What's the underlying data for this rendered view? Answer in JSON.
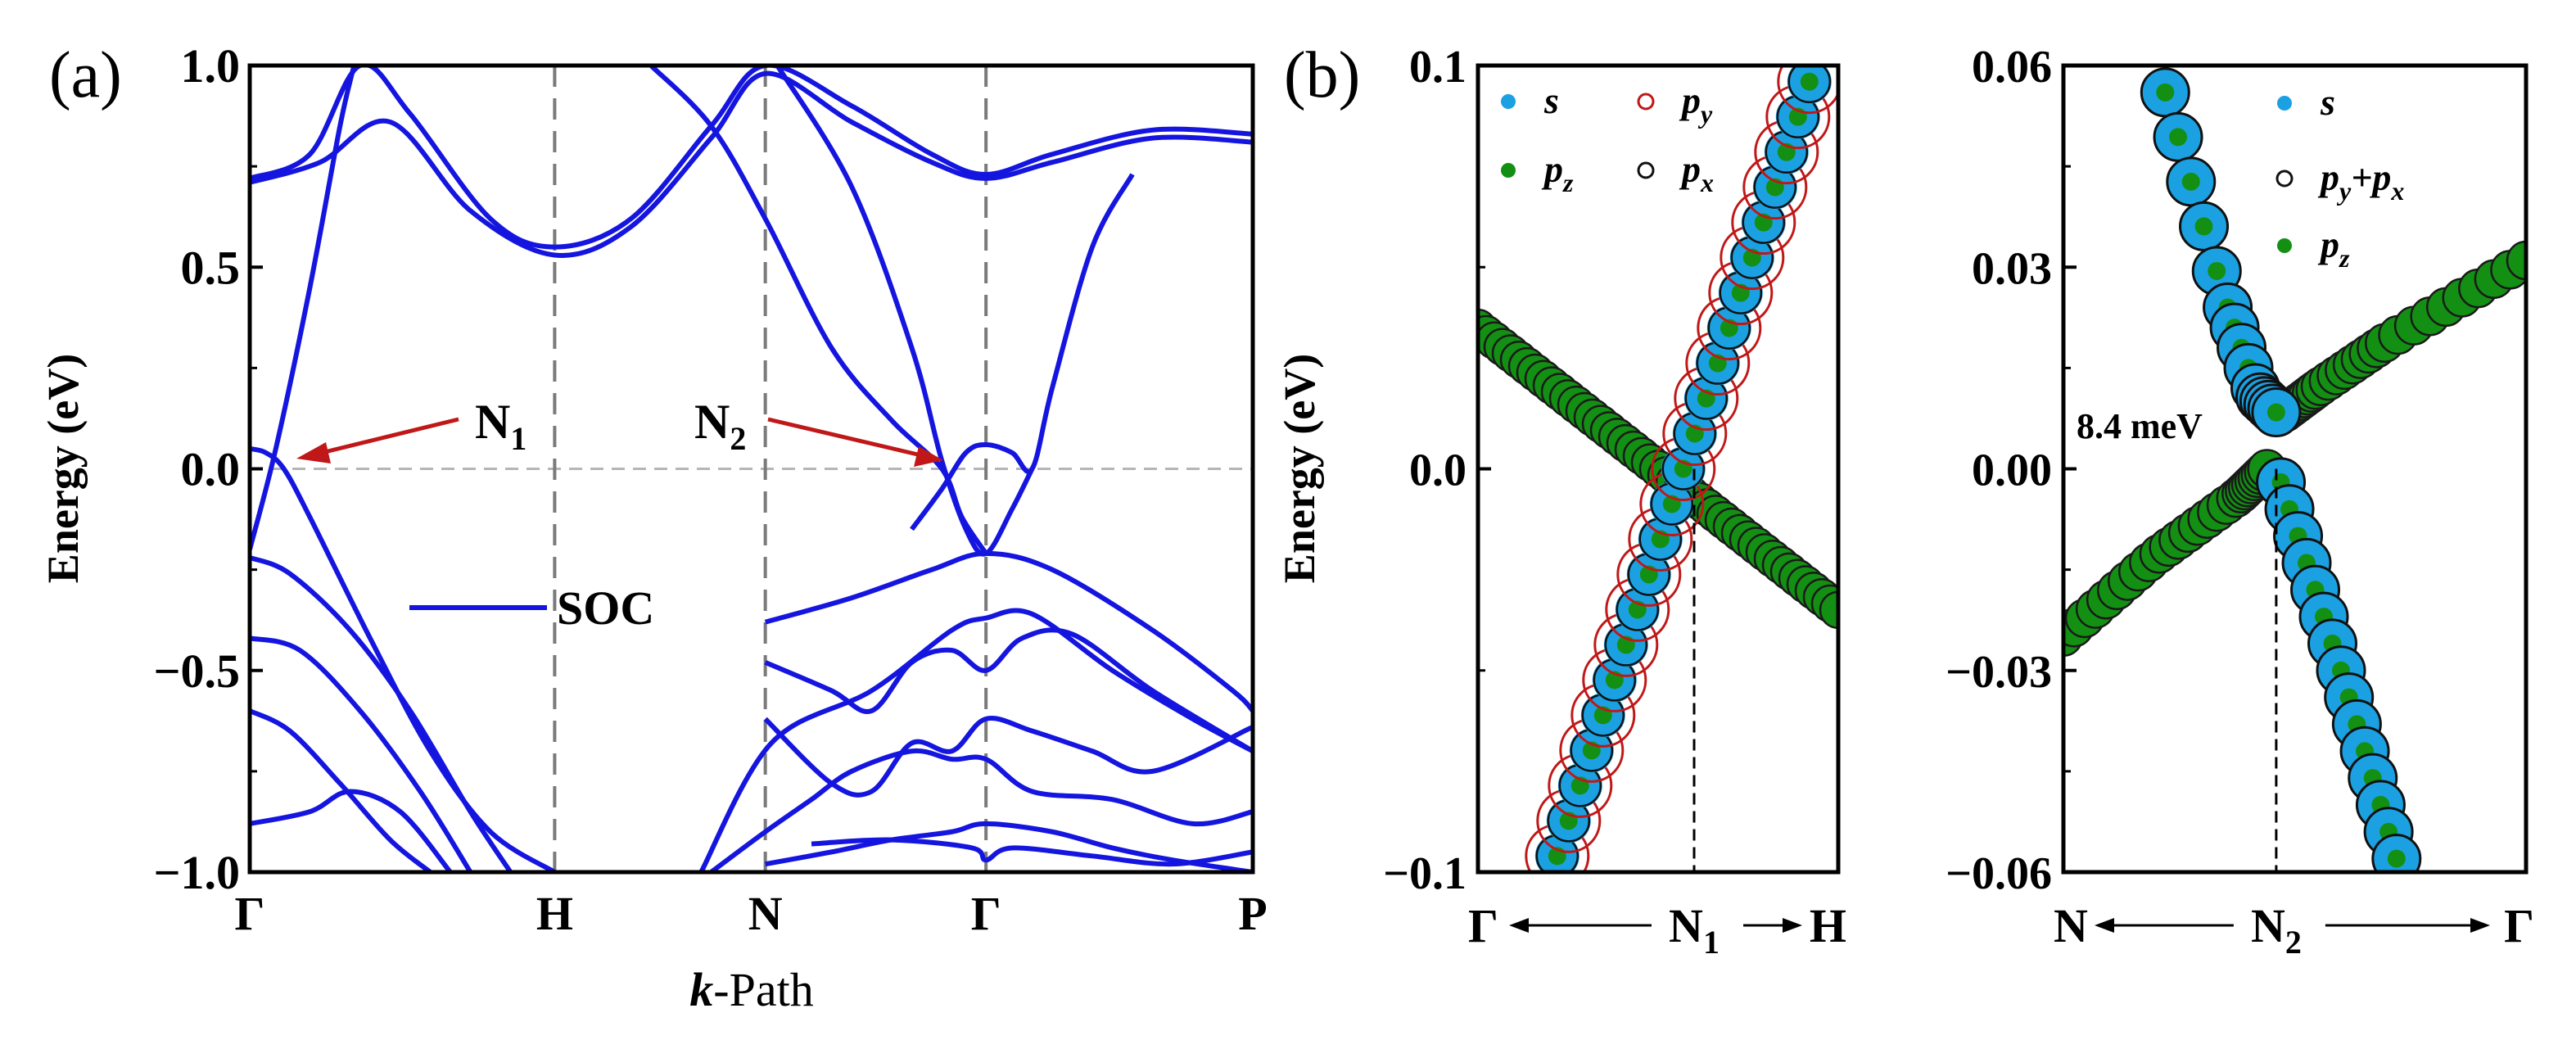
{
  "chart_data": [
    {
      "type": "line",
      "panel_label": "(a)",
      "xlabel": "k-Path",
      "xlabel_italic": "k",
      "xlabel_rest": "-Path",
      "ylabel": "Energy (eV)",
      "ylim": [
        -1.0,
        1.0
      ],
      "yticks": [
        -1.0,
        -0.5,
        0.0,
        0.5,
        1.0
      ],
      "ytick_labels": [
        "−1.0",
        "−0.5",
        "0.0",
        "0.5",
        "1.0"
      ],
      "xlim": [
        0,
        5
      ],
      "kpoints": [
        {
          "label": "Γ",
          "x": 0
        },
        {
          "label": "H",
          "x": 1.52
        },
        {
          "label": "N",
          "x": 2.57
        },
        {
          "label": "Γ",
          "x": 3.67
        },
        {
          "label": "P",
          "x": 5
        }
      ],
      "legend": {
        "label": "SOC",
        "color": "#1515e0"
      },
      "annotations": [
        {
          "main": "N",
          "sub": "1",
          "point": [
            0.17,
            0.02
          ],
          "color": "#c01818"
        },
        {
          "main": "N",
          "sub": "2",
          "point": [
            3.45,
            0.02
          ],
          "color": "#c01818"
        }
      ],
      "series": [
        {
          "name": "band",
          "x": [
            0,
            0.3,
            0.55,
            0.8,
            1.2,
            1.52,
            1.9,
            2.3,
            2.57,
            3.0,
            3.4,
            3.67,
            4.0,
            4.5,
            5
          ],
          "y": [
            0.72,
            0.78,
            1.0,
            0.88,
            0.62,
            0.55,
            0.62,
            0.85,
            1.0,
            0.9,
            0.78,
            0.73,
            0.78,
            0.84,
            0.83
          ]
        },
        {
          "name": "band",
          "x": [
            0,
            0.35,
            0.7,
            1.1,
            1.52,
            1.9,
            2.3,
            2.57,
            3.0,
            3.4,
            3.67,
            4.0,
            4.5,
            5
          ],
          "y": [
            0.71,
            0.76,
            0.86,
            0.64,
            0.53,
            0.6,
            0.82,
            0.98,
            0.86,
            0.76,
            0.72,
            0.76,
            0.82,
            0.81
          ]
        },
        {
          "name": "band",
          "x": [
            0,
            0.13,
            0.3,
            0.45,
            0.52
          ],
          "y": [
            -0.2,
            0.05,
            0.45,
            0.85,
            1.0
          ]
        },
        {
          "name": "band",
          "x": [
            0,
            0.08,
            0.17,
            0.3,
            0.6,
            0.9,
            1.2,
            1.52
          ],
          "y": [
            0.05,
            0.04,
            0.0,
            -0.12,
            -0.42,
            -0.7,
            -0.9,
            -1.0
          ]
        },
        {
          "name": "band",
          "x": [
            0,
            0.2,
            0.5,
            0.8,
            1.1,
            1.3
          ],
          "y": [
            -0.22,
            -0.26,
            -0.4,
            -0.6,
            -0.85,
            -1.0
          ]
        },
        {
          "name": "band",
          "x": [
            0,
            0.25,
            0.55,
            0.85,
            1.1
          ],
          "y": [
            -0.42,
            -0.45,
            -0.6,
            -0.8,
            -1.0
          ]
        },
        {
          "name": "band",
          "x": [
            0,
            0.2,
            0.45,
            0.7,
            0.9
          ],
          "y": [
            -0.6,
            -0.65,
            -0.78,
            -0.92,
            -1.0
          ]
        },
        {
          "name": "band",
          "x": [
            0,
            0.3,
            0.5,
            0.75,
            1.0
          ],
          "y": [
            -0.88,
            -0.85,
            -0.8,
            -0.85,
            -1.0
          ]
        },
        {
          "name": "band",
          "x": [
            2.25,
            2.6,
            3.1,
            3.5,
            3.67,
            3.9,
            4.3,
            4.7,
            5
          ],
          "y": [
            -1.0,
            -0.68,
            -0.55,
            -0.4,
            -0.37,
            -0.36,
            -0.5,
            -0.62,
            -0.7
          ]
        },
        {
          "name": "band",
          "x": [
            2.57,
            3.0,
            3.4,
            3.67,
            4.0,
            4.5,
            4.9,
            5
          ],
          "y": [
            -0.38,
            -0.32,
            -0.25,
            -0.21,
            -0.25,
            -0.4,
            -0.55,
            -0.6
          ]
        },
        {
          "name": "band",
          "x": [
            2.57,
            2.9,
            3.1,
            3.3,
            3.5,
            3.67,
            3.85,
            4.1,
            4.5,
            5
          ],
          "y": [
            -0.48,
            -0.55,
            -0.6,
            -0.48,
            -0.45,
            -0.5,
            -0.42,
            -0.41,
            -0.55,
            -0.7
          ]
        },
        {
          "name": "band",
          "x": [
            2.57,
            2.9,
            3.1,
            3.3,
            3.5,
            3.67,
            3.9,
            4.2,
            4.5,
            5
          ],
          "y": [
            -0.62,
            -0.78,
            -0.8,
            -0.68,
            -0.7,
            -0.62,
            -0.65,
            -0.7,
            -0.75,
            -0.64
          ]
        },
        {
          "name": "band",
          "x": [
            2.3,
            2.57,
            2.8,
            3.0,
            3.3,
            3.5,
            3.67,
            3.9,
            4.3,
            4.7,
            5
          ],
          "y": [
            -1.0,
            -0.9,
            -0.82,
            -0.75,
            -0.7,
            -0.72,
            -0.72,
            -0.8,
            -0.82,
            -0.88,
            -0.85
          ]
        },
        {
          "name": "band",
          "x": [
            2.57,
            2.9,
            3.2,
            3.5,
            3.67,
            4.0,
            4.3,
            4.6,
            5
          ],
          "y": [
            -0.98,
            -0.95,
            -0.92,
            -0.9,
            -0.88,
            -0.9,
            -0.94,
            -0.97,
            -1.0
          ]
        },
        {
          "name": "band",
          "x": [
            2.8,
            3.2,
            3.6,
            3.67,
            3.8,
            4.2,
            4.6,
            5
          ],
          "y": [
            -0.93,
            -0.92,
            -0.94,
            -0.97,
            -0.94,
            -0.96,
            -0.98,
            -0.95
          ]
        },
        {
          "name": "band",
          "x": [
            2.0,
            2.3,
            2.57,
            2.9,
            3.2,
            3.45,
            3.55,
            3.67
          ],
          "y": [
            1.0,
            0.85,
            0.62,
            0.3,
            0.12,
            0.0,
            -0.12,
            -0.21
          ]
        },
        {
          "name": "band",
          "x": [
            2.63,
            3.0,
            3.3,
            3.45,
            3.57,
            3.67,
            3.8,
            3.9
          ],
          "y": [
            1.0,
            0.7,
            0.3,
            0.02,
            -0.15,
            -0.21,
            -0.1,
            0.0
          ]
        },
        {
          "name": "band",
          "x": [
            3.3,
            3.45,
            3.57,
            3.67,
            3.8,
            3.9,
            4.0,
            4.2,
            4.4
          ],
          "y": [
            -0.15,
            -0.05,
            0.04,
            0.06,
            0.04,
            0.0,
            0.2,
            0.55,
            0.73
          ]
        }
      ]
    },
    {
      "type": "scatter",
      "panel_label": "(b)",
      "ylabel": "Energy (eV)",
      "ylim": [
        -0.1,
        0.1
      ],
      "yticks": [
        -0.1,
        0.0,
        0.1
      ],
      "ytick_labels": [
        "−0.1",
        "0.0",
        "0.1"
      ],
      "xlim": [
        0,
        1
      ],
      "xticks_text": {
        "left": "Γ",
        "center_main": "N",
        "center_sub": "1",
        "right": "H"
      },
      "legend": [
        {
          "main": "s",
          "sub": "",
          "color": "#1ba1e2",
          "style": "filled"
        },
        {
          "main": "p",
          "sub": "y",
          "color": "#c01818",
          "style": "open"
        },
        {
          "main": "p",
          "sub": "z",
          "color": "#139013",
          "style": "filled"
        },
        {
          "main": "p",
          "sub": "x",
          "color": "#111111",
          "style": "open"
        }
      ],
      "crossing": {
        "x": 0.6,
        "y": 0.0
      },
      "series": [
        {
          "name": "pz band (Γ–H)",
          "x0": 0,
          "y0": 0.035,
          "x1": 1,
          "y1": -0.035
        },
        {
          "name": "s/py/px band",
          "x0": 0.22,
          "y0": -0.096,
          "x1": 0.92,
          "y1": 0.096
        }
      ]
    },
    {
      "type": "scatter",
      "ylim": [
        -0.06,
        0.06
      ],
      "yticks": [
        -0.06,
        -0.03,
        0.0,
        0.03,
        0.06
      ],
      "ytick_labels": [
        "−0.06",
        "−0.03",
        "0.00",
        "0.03",
        "0.06"
      ],
      "xlim": [
        0,
        1
      ],
      "xticks_text": {
        "left": "N",
        "center_main": "N",
        "center_sub": "2",
        "right": "Γ"
      },
      "legend": [
        {
          "main": "s",
          "sub": "",
          "color": "#1ba1e2",
          "style": "filled"
        },
        {
          "main": "p",
          "sub": "y",
          "main2": "+p",
          "sub2": "x",
          "color": "#111111",
          "style": "open"
        },
        {
          "main": "p",
          "sub": "z",
          "color": "#139013",
          "style": "filled"
        }
      ],
      "annotation": "8.4 meV",
      "gap_meV": 8.4,
      "crossing": {
        "x": 0.46,
        "y": 0.0
      },
      "series": [
        {
          "name": "upper branch s",
          "points": [
            [
              0.22,
              0.056
            ],
            [
              0.35,
              0.025
            ],
            [
              0.42,
              0.011
            ],
            [
              0.46,
              0.0084
            ]
          ]
        },
        {
          "name": "upper branch pz",
          "points": [
            [
              0.48,
              0.0084
            ],
            [
              0.55,
              0.012
            ],
            [
              0.7,
              0.019
            ],
            [
              1.0,
              0.031
            ]
          ]
        },
        {
          "name": "lower branch pz",
          "points": [
            [
              0.0,
              -0.025
            ],
            [
              0.2,
              -0.013
            ],
            [
              0.38,
              -0.004
            ],
            [
              0.44,
              0.0
            ]
          ]
        },
        {
          "name": "lower branch s",
          "points": [
            [
              0.47,
              -0.002
            ],
            [
              0.6,
              -0.03
            ],
            [
              0.72,
              -0.058
            ]
          ]
        }
      ]
    }
  ]
}
